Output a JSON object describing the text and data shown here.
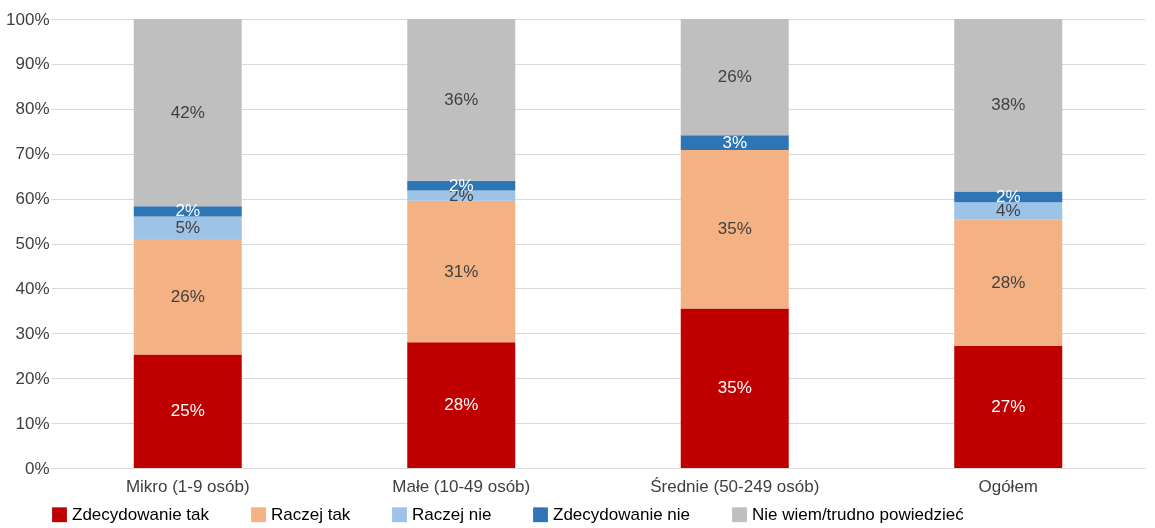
{
  "chart_data": {
    "type": "bar",
    "stacked": true,
    "categories": [
      "Mikro (1-9 osób)",
      "Małe (10-49 osób)",
      "Średnie (50-249 osób)",
      "Ogółem"
    ],
    "series": [
      {
        "name": "Zdecydowanie tak",
        "color": "#c00000",
        "values": [
          25.3,
          28,
          35.5,
          27.2
        ],
        "value_labels": [
          "25%",
          "28%",
          "35%",
          "27%"
        ]
      },
      {
        "name": "Raczej tak",
        "color": "#f4b183",
        "values": [
          25.7,
          31.5,
          35.3,
          28.2
        ],
        "value_labels": [
          "26%",
          "31%",
          "35%",
          "28%"
        ]
      },
      {
        "name": "Raczej nie",
        "color": "#9dc3e6",
        "values": [
          5,
          2.3,
          0,
          3.8
        ],
        "value_labels": [
          "5%",
          "2%",
          null,
          "4%"
        ]
      },
      {
        "name": "Zdecydowanie nie",
        "color": "#2e75b6",
        "values": [
          2.3,
          2.2,
          3.3,
          2.4
        ],
        "value_labels": [
          "2%",
          "2%",
          "3%",
          "2%"
        ]
      },
      {
        "name": "Nie wiem/trudno powiedzieć",
        "color": "#bfbfbf",
        "values": [
          41.7,
          36,
          25.9,
          38.4
        ],
        "value_labels": [
          "42%",
          "36%",
          "26%",
          "38%"
        ]
      }
    ],
    "ylim": [
      0,
      100
    ],
    "yticks": [
      {
        "value": 0,
        "label": "0%"
      },
      {
        "value": 10,
        "label": "10%"
      },
      {
        "value": 20,
        "label": "20%"
      },
      {
        "value": 30,
        "label": "30%"
      },
      {
        "value": 40,
        "label": "40%"
      },
      {
        "value": 50,
        "label": "50%"
      },
      {
        "value": 60,
        "label": "60%"
      },
      {
        "value": 70,
        "label": "70%"
      },
      {
        "value": 80,
        "label": "80%"
      },
      {
        "value": 90,
        "label": "90%"
      },
      {
        "value": 100,
        "label": "100%"
      }
    ],
    "grid": "y",
    "legend": "bottom"
  }
}
